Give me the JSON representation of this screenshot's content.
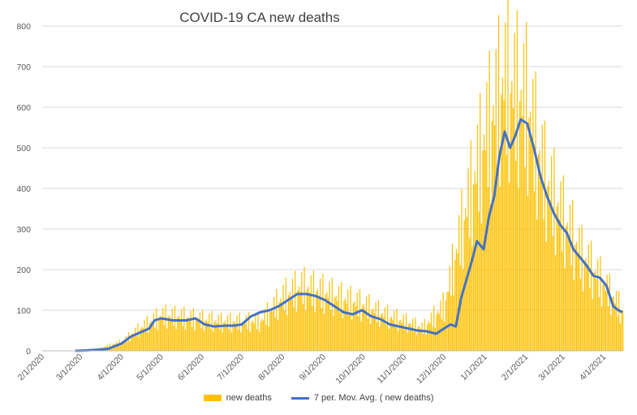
{
  "chart_data": {
    "type": "bar",
    "title": "COVID-19 CA new deaths",
    "xlabel": "",
    "ylabel": "",
    "ylim": [
      0,
      800
    ],
    "yticks": [
      0,
      100,
      200,
      300,
      400,
      500,
      600,
      700,
      800
    ],
    "x_start": "2/1/2020",
    "x_end": "4/15/2021",
    "xticks": [
      "2/1/2020",
      "3/1/2020",
      "4/1/2020",
      "5/1/2020",
      "6/1/2020",
      "7/1/2020",
      "8/1/2020",
      "9/1/2020",
      "10/1/2020",
      "11/1/2020",
      "12/1/2020",
      "1/1/2021",
      "2/1/2021",
      "3/1/2021",
      "4/1/2021"
    ],
    "grid": true,
    "legend_position": "bottom",
    "colors": {
      "bars": "#FFC000",
      "line": "#4472C4"
    },
    "series": [
      {
        "name": "new deaths",
        "type": "bar",
        "x": [
          "3/1/2020",
          "3/15/2020",
          "4/1/2020",
          "4/15/2020",
          "5/1/2020",
          "5/15/2020",
          "6/1/2020",
          "6/15/2020",
          "7/1/2020",
          "7/15/2020",
          "8/1/2020",
          "8/15/2020",
          "9/1/2020",
          "9/15/2020",
          "10/1/2020",
          "10/15/2020",
          "11/1/2020",
          "11/15/2020",
          "12/1/2020",
          "12/15/2020",
          "1/1/2021",
          "1/15/2021",
          "2/1/2021",
          "2/15/2021",
          "3/1/2021",
          "3/15/2021",
          "4/1/2021",
          "4/15/2021"
        ],
        "values": [
          2,
          6,
          22,
          55,
          85,
          82,
          75,
          70,
          70,
          72,
          130,
          155,
          140,
          125,
          110,
          88,
          70,
          55,
          110,
          310,
          520,
          650,
          600,
          420,
          320,
          230,
          160,
          95
        ]
      },
      {
        "name": "7 per. Mov. Avg. ( new deaths)",
        "type": "line",
        "x": [
          "2/26/2020",
          "3/5/2020",
          "3/15/2020",
          "3/22/2020",
          "4/1/2020",
          "4/8/2020",
          "4/15/2020",
          "4/22/2020",
          "4/26/2020",
          "5/1/2020",
          "5/10/2020",
          "5/20/2020",
          "5/27/2020",
          "6/3/2020",
          "6/10/2020",
          "6/18/2020",
          "6/25/2020",
          "7/1/2020",
          "7/8/2020",
          "7/15/2020",
          "7/22/2020",
          "7/29/2020",
          "8/5/2020",
          "8/12/2020",
          "8/19/2020",
          "8/26/2020",
          "9/2/2020",
          "9/9/2020",
          "9/16/2020",
          "9/23/2020",
          "9/30/2020",
          "10/7/2020",
          "10/14/2020",
          "10/21/2020",
          "10/28/2020",
          "11/4/2020",
          "11/11/2020",
          "11/18/2020",
          "11/25/2020",
          "12/1/2020",
          "12/6/2020",
          "12/10/2020",
          "12/14/2020",
          "12/18/2020",
          "12/22/2020",
          "12/26/2020",
          "12/31/2020",
          "1/4/2021",
          "1/8/2021",
          "1/12/2021",
          "1/16/2021",
          "1/20/2021",
          "1/24/2021",
          "1/28/2021",
          "2/2/2021",
          "2/7/2021",
          "2/12/2021",
          "2/17/2021",
          "2/22/2021",
          "2/27/2021",
          "3/4/2021",
          "3/9/2021",
          "3/14/2021",
          "3/19/2021",
          "3/24/2021",
          "3/29/2021",
          "4/3/2021",
          "4/8/2021",
          "4/12/2021",
          "4/15/2021"
        ],
        "values": [
          0,
          1,
          3,
          5,
          18,
          35,
          45,
          55,
          75,
          80,
          75,
          75,
          80,
          65,
          60,
          62,
          62,
          65,
          85,
          95,
          100,
          110,
          125,
          140,
          140,
          135,
          125,
          110,
          95,
          90,
          100,
          85,
          78,
          65,
          60,
          55,
          50,
          48,
          42,
          55,
          65,
          60,
          130,
          175,
          220,
          270,
          250,
          330,
          380,
          480,
          540,
          500,
          530,
          570,
          560,
          500,
          430,
          380,
          340,
          310,
          290,
          250,
          230,
          210,
          185,
          180,
          160,
          110,
          100,
          95
        ]
      }
    ]
  }
}
